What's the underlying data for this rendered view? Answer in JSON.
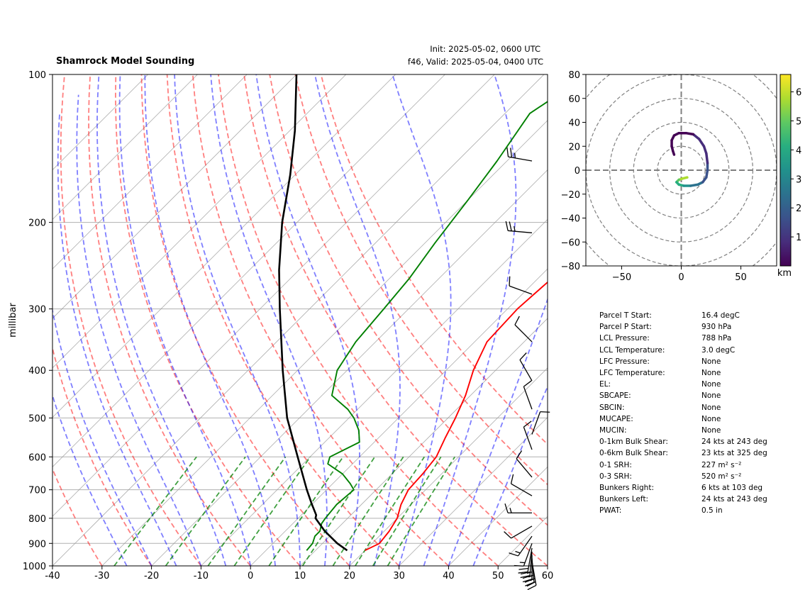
{
  "header": {
    "title": "Shamrock Model Sounding",
    "init": "Init: 2025-05-02, 0600 UTC",
    "valid": "f46, Valid: 2025-05-04, 0400 UTC"
  },
  "chart_data": [
    {
      "type": "line",
      "subtype": "skew-t",
      "ylabel": "millibar",
      "xlabel": "",
      "xlim": [
        -40,
        60
      ],
      "ylim": [
        1000,
        100
      ],
      "y_log_scale": true,
      "x_ticks": [
        -40,
        -30,
        -20,
        -10,
        0,
        10,
        20,
        30,
        40,
        50,
        60
      ],
      "y_ticks": [
        100,
        200,
        300,
        400,
        500,
        600,
        700,
        800,
        900,
        1000
      ],
      "grid": true,
      "series": [
        {
          "color": "#ff0000",
          "points": [
            [
              930,
              20.0
            ],
            [
              900,
              21.5
            ],
            [
              850,
              21.0
            ],
            [
              800,
              20.0
            ],
            [
              750,
              18.0
            ],
            [
              700,
              16.5
            ],
            [
              650,
              16.2
            ],
            [
              600,
              15.5
            ],
            [
              550,
              13.5
            ],
            [
              500,
              11.5
            ],
            [
              450,
              9.0
            ],
            [
              400,
              5.5
            ],
            [
              350,
              2.5
            ],
            [
              300,
              2.0
            ],
            [
              250,
              3.0
            ],
            [
              200,
              10.0
            ],
            [
              180,
              16.0
            ],
            [
              150,
              24.0
            ],
            [
              130,
              30.0
            ],
            [
              100,
              45.0
            ]
          ]
        },
        {
          "color": "#008000",
          "points": [
            [
              930,
              8.2
            ],
            [
              900,
              8.0
            ],
            [
              870,
              7.0
            ],
            [
              850,
              7.0
            ],
            [
              820,
              5.8
            ],
            [
              800,
              5.5
            ],
            [
              750,
              5.0
            ],
            [
              700,
              5.5
            ],
            [
              680,
              3.5
            ],
            [
              650,
              0.0
            ],
            [
              620,
              -5.0
            ],
            [
              600,
              -6.0
            ],
            [
              560,
              -3.0
            ],
            [
              530,
              -5.5
            ],
            [
              500,
              -9.0
            ],
            [
              480,
              -12.0
            ],
            [
              450,
              -18.0
            ],
            [
              400,
              -22.0
            ],
            [
              350,
              -24.0
            ],
            [
              300,
              -25.0
            ],
            [
              260,
              -26.0
            ],
            [
              220,
              -28.0
            ],
            [
              180,
              -30.0
            ],
            [
              150,
              -32.0
            ],
            [
              120,
              -35.0
            ],
            [
              100,
              -31.0
            ]
          ]
        },
        {
          "color": "#000000",
          "points": [
            [
              930,
              16.4
            ],
            [
              900,
              13.0
            ],
            [
              850,
              8.0
            ],
            [
              800,
              3.5
            ],
            [
              788,
              3.0
            ],
            [
              750,
              0.0
            ],
            [
              700,
              -4.0
            ],
            [
              600,
              -12.5
            ],
            [
              500,
              -22.5
            ],
            [
              400,
              -33.0
            ],
            [
              300,
              -46.0
            ],
            [
              250,
              -54.0
            ],
            [
              200,
              -63.0
            ],
            [
              160,
              -71.0
            ],
            [
              130,
              -79.0
            ],
            [
              100,
              -90.0
            ]
          ]
        }
      ],
      "isobars": [
        100,
        200,
        300,
        400,
        500,
        600,
        700,
        800,
        900,
        1000
      ],
      "isotherms": [
        -120,
        -110,
        -100,
        -90,
        -80,
        -70,
        -60,
        -50,
        -40,
        -30,
        -20,
        -10,
        0,
        10,
        20,
        30,
        40,
        50,
        60
      ],
      "dry_adiabats_theta_c": [
        -30,
        -20,
        -10,
        0,
        10,
        20,
        30,
        40,
        50,
        60,
        70,
        80,
        90
      ],
      "moist_adiabats_start_c": [
        -25,
        -20,
        -15,
        -10,
        -5,
        0,
        5,
        10,
        15,
        20,
        25,
        30,
        35,
        40,
        45
      ],
      "mixing_ratios": [
        0.4,
        1,
        2,
        3,
        5,
        8,
        12,
        16,
        20,
        24
      ],
      "colors": {
        "isotherm": "#999999",
        "dry_adiabat": "#ff0000",
        "moist_adiabat": "#0000ff",
        "mixing_ratio": "#008000",
        "isobar": "#b0b0b0"
      },
      "wind_barbs": [
        {
          "p": 980,
          "speed_kt": 25,
          "dir_deg": 170
        },
        {
          "p": 965,
          "speed_kt": 25,
          "dir_deg": 175
        },
        {
          "p": 950,
          "speed_kt": 25,
          "dir_deg": 180
        },
        {
          "p": 935,
          "speed_kt": 20,
          "dir_deg": 185
        },
        {
          "p": 920,
          "speed_kt": 20,
          "dir_deg": 190
        },
        {
          "p": 900,
          "speed_kt": 15,
          "dir_deg": 200
        },
        {
          "p": 870,
          "speed_kt": 15,
          "dir_deg": 215
        },
        {
          "p": 830,
          "speed_kt": 10,
          "dir_deg": 240
        },
        {
          "p": 780,
          "speed_kt": 15,
          "dir_deg": 270
        },
        {
          "p": 720,
          "speed_kt": 10,
          "dir_deg": 300
        },
        {
          "p": 660,
          "speed_kt": 10,
          "dir_deg": 320
        },
        {
          "p": 580,
          "speed_kt": 10,
          "dir_deg": 340
        },
        {
          "p": 540,
          "speed_kt": 10,
          "dir_deg": 20
        },
        {
          "p": 480,
          "speed_kt": 10,
          "dir_deg": 340
        },
        {
          "p": 420,
          "speed_kt": 10,
          "dir_deg": 330
        },
        {
          "p": 350,
          "speed_kt": 10,
          "dir_deg": 315
        },
        {
          "p": 280,
          "speed_kt": 10,
          "dir_deg": 290
        },
        {
          "p": 210,
          "speed_kt": 25,
          "dir_deg": 275
        },
        {
          "p": 150,
          "speed_kt": 25,
          "dir_deg": 280
        }
      ]
    },
    {
      "type": "line",
      "subtype": "hodograph",
      "xlim": [
        -80,
        80
      ],
      "ylim": [
        -80,
        80
      ],
      "x_ticks": [
        -50,
        0,
        50
      ],
      "y_ticks": [
        -80,
        -60,
        -40,
        -20,
        0,
        20,
        40,
        60,
        80
      ],
      "range_rings": [
        20,
        40,
        60,
        80,
        100
      ],
      "colorbar": {
        "label": "km",
        "ticks": [
          1,
          2,
          3,
          4,
          5,
          6
        ],
        "min": 0,
        "max": 6.6,
        "colormap": "viridis"
      },
      "points": [
        {
          "u": 5,
          "v": -6,
          "h": 6.2
        },
        {
          "u": 1,
          "v": -7,
          "h": 5.8
        },
        {
          "u": -2,
          "v": -8,
          "h": 5.3
        },
        {
          "u": -4,
          "v": -10,
          "h": 4.6
        },
        {
          "u": -2,
          "v": -12,
          "h": 4.0
        },
        {
          "u": 2,
          "v": -13,
          "h": 3.5
        },
        {
          "u": 8,
          "v": -13,
          "h": 3.0
        },
        {
          "u": 14,
          "v": -12,
          "h": 2.5
        },
        {
          "u": 18,
          "v": -10,
          "h": 2.0
        },
        {
          "u": 21,
          "v": -6,
          "h": 1.7
        },
        {
          "u": 22,
          "v": 0,
          "h": 1.5
        },
        {
          "u": 22,
          "v": 6,
          "h": 1.2
        },
        {
          "u": 21,
          "v": 14,
          "h": 1.0
        },
        {
          "u": 19,
          "v": 20,
          "h": 0.8
        },
        {
          "u": 15,
          "v": 26,
          "h": 0.6
        },
        {
          "u": 10,
          "v": 30,
          "h": 0.45
        },
        {
          "u": 4,
          "v": 31,
          "h": 0.3
        },
        {
          "u": -2,
          "v": 31,
          "h": 0.2
        },
        {
          "u": -6,
          "v": 29,
          "h": 0.12
        },
        {
          "u": -8,
          "v": 25,
          "h": 0.08
        },
        {
          "u": -8,
          "v": 20,
          "h": 0.05
        },
        {
          "u": -7,
          "v": 16,
          "h": 0.03
        },
        {
          "u": -6,
          "v": 13,
          "h": 0.0
        }
      ]
    }
  ],
  "stats": [
    {
      "label": "Parcel T Start:",
      "value": "16.4 degC"
    },
    {
      "label": "Parcel P Start:",
      "value": "930 hPa"
    },
    {
      "label": "LCL Pressure:",
      "value": "788 hPa"
    },
    {
      "label": "LCL Temperature:",
      "value": "3.0 degC"
    },
    {
      "label": "LFC Pressure:",
      "value": "None"
    },
    {
      "label": "LFC Temperature:",
      "value": "None"
    },
    {
      "label": "EL:",
      "value": "None"
    },
    {
      "label": "SBCAPE:",
      "value": "None"
    },
    {
      "label": "SBCIN:",
      "value": "None"
    },
    {
      "label": "MUCAPE:",
      "value": "None"
    },
    {
      "label": "MUCIN:",
      "value": "None"
    },
    {
      "label": "0-1km Bulk Shear:",
      "value": "24 kts at 243 deg"
    },
    {
      "label": "0-6km Bulk Shear:",
      "value": "23 kts at 325 deg"
    },
    {
      "label": "0-1 SRH:",
      "value": "227 m² s⁻²"
    },
    {
      "label": "0-3 SRH:",
      "value": "520 m² s⁻²"
    },
    {
      "label": "Bunkers Right:",
      "value": "6 kts at 103 deg"
    },
    {
      "label": "Bunkers Left:",
      "value": "24 kts at 243 deg"
    },
    {
      "label": "PWAT:",
      "value": "0.5 in"
    }
  ]
}
